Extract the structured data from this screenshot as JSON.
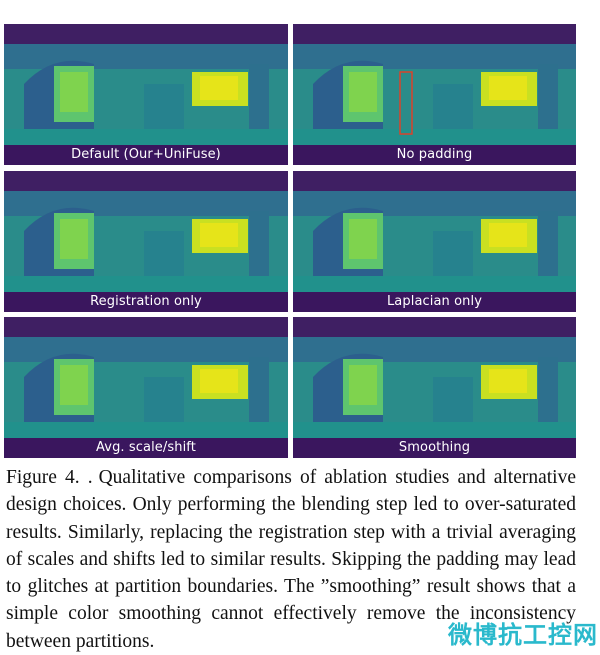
{
  "figure": {
    "panels": [
      {
        "label": "Default (Our+UniFuse)"
      },
      {
        "label": "No padding"
      },
      {
        "label": "Registration only"
      },
      {
        "label": "Laplacian only"
      },
      {
        "label": "Avg. scale/shift"
      },
      {
        "label": "Smoothing"
      }
    ]
  },
  "caption": {
    "lead": "Figure 4. .",
    "text": "Qualitative comparisons of ablation studies and alternative design choices. Only performing the blending step led to over-saturated results. Similarly, replacing the registration step with a trivial averaging of scales and shifts led to similar results. Skipping the padding may lead to glitches at partition boundaries. The ”smoothing” result shows that a simple color smoothing cannot effectively remove the inconsistency between partitions."
  },
  "watermark": {
    "text": "微博抗工控网"
  }
}
